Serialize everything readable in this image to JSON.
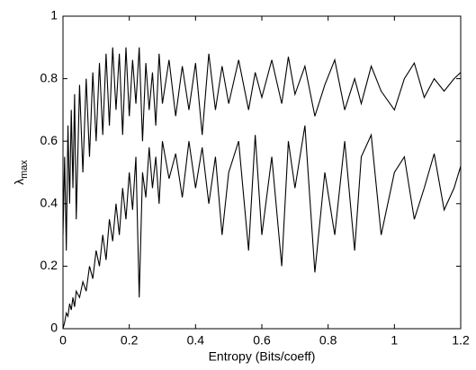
{
  "chart_data": {
    "type": "line",
    "x_label": "Entropy (Bits/coeff)",
    "y_label": {
      "symbol": "λ",
      "subscript": "max"
    },
    "x": [
      0,
      0.005,
      0.01,
      0.015,
      0.02,
      0.025,
      0.03,
      0.035,
      0.04,
      0.05,
      0.06,
      0.07,
      0.08,
      0.09,
      0.1,
      0.11,
      0.12,
      0.13,
      0.14,
      0.15,
      0.16,
      0.17,
      0.18,
      0.19,
      0.2,
      0.21,
      0.22,
      0.23,
      0.24,
      0.25,
      0.26,
      0.27,
      0.28,
      0.29,
      0.3,
      0.32,
      0.34,
      0.36,
      0.38,
      0.4,
      0.42,
      0.44,
      0.46,
      0.48,
      0.5,
      0.53,
      0.56,
      0.58,
      0.6,
      0.63,
      0.66,
      0.68,
      0.7,
      0.73,
      0.76,
      0.79,
      0.82,
      0.85,
      0.88,
      0.9,
      0.93,
      0.96,
      1.0,
      1.03,
      1.06,
      1.09,
      1.12,
      1.15,
      1.18,
      1.2
    ],
    "series": [
      {
        "color": "#000000",
        "values": [
          0.3,
          0.55,
          0.25,
          0.65,
          0.4,
          0.7,
          0.45,
          0.75,
          0.35,
          0.78,
          0.5,
          0.8,
          0.55,
          0.82,
          0.6,
          0.85,
          0.62,
          0.88,
          0.65,
          0.9,
          0.7,
          0.88,
          0.62,
          0.9,
          0.68,
          0.86,
          0.72,
          0.9,
          0.6,
          0.85,
          0.7,
          0.82,
          0.65,
          0.88,
          0.72,
          0.86,
          0.68,
          0.84,
          0.7,
          0.85,
          0.62,
          0.88,
          0.7,
          0.84,
          0.72,
          0.86,
          0.7,
          0.82,
          0.74,
          0.86,
          0.72,
          0.87,
          0.75,
          0.84,
          0.68,
          0.78,
          0.86,
          0.7,
          0.8,
          0.72,
          0.84,
          0.76,
          0.7,
          0.8,
          0.85,
          0.74,
          0.8,
          0.76,
          0.8,
          0.82
        ]
      },
      {
        "color": "#000000",
        "values": [
          0,
          0.02,
          0.05,
          0.04,
          0.08,
          0.06,
          0.1,
          0.07,
          0.12,
          0.1,
          0.15,
          0.12,
          0.2,
          0.16,
          0.25,
          0.2,
          0.3,
          0.22,
          0.35,
          0.28,
          0.4,
          0.3,
          0.45,
          0.35,
          0.5,
          0.38,
          0.55,
          0.1,
          0.5,
          0.42,
          0.58,
          0.45,
          0.55,
          0.4,
          0.6,
          0.48,
          0.56,
          0.42,
          0.6,
          0.45,
          0.58,
          0.4,
          0.55,
          0.3,
          0.5,
          0.6,
          0.25,
          0.62,
          0.3,
          0.55,
          0.2,
          0.6,
          0.45,
          0.65,
          0.18,
          0.5,
          0.3,
          0.6,
          0.25,
          0.55,
          0.62,
          0.3,
          0.5,
          0.55,
          0.35,
          0.45,
          0.56,
          0.38,
          0.45,
          0.52
        ]
      }
    ],
    "xlim": [
      0,
      1.2
    ],
    "xticks": [
      0,
      0.2,
      0.4,
      0.6,
      0.8,
      1,
      1.2
    ],
    "ylim": [
      0,
      1
    ],
    "yticks": [
      0,
      0.2,
      0.4,
      0.6,
      0.8,
      1
    ],
    "grid": false
  }
}
